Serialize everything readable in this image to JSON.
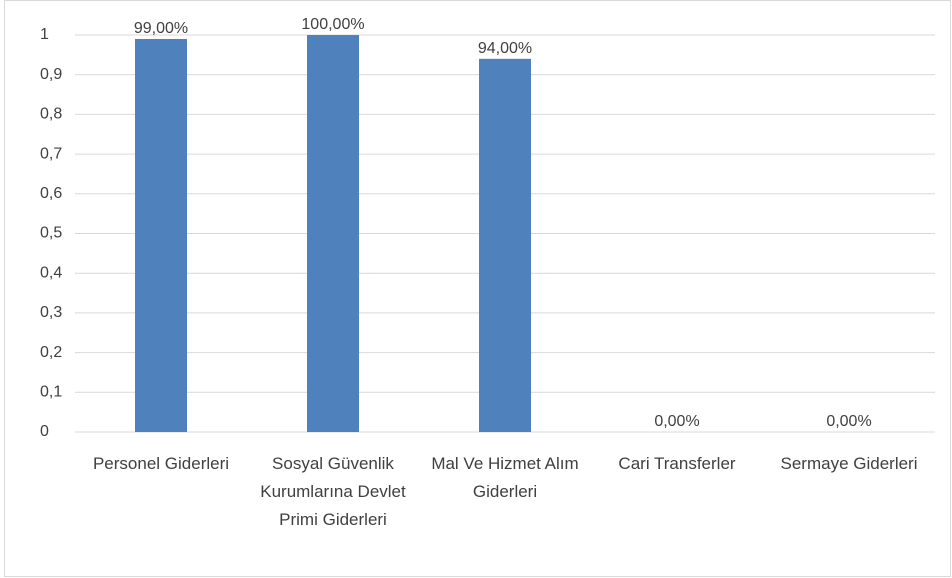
{
  "chart_data": {
    "type": "bar",
    "categories": [
      "Personel Giderleri",
      "Sosyal Güvenlik Kurumlarına Devlet Primi Giderleri",
      "Mal Ve Hizmet Alım Giderleri",
      "Cari Transferler",
      "Sermaye Giderleri"
    ],
    "values": [
      0.99,
      1,
      0.94,
      0,
      0
    ],
    "value_labels": [
      "99,00%",
      "100,00%",
      "94,00%",
      "0,00%",
      "0,00%"
    ],
    "color": "#4f81bd",
    "ylim": [
      0,
      1
    ],
    "yticks": [
      0,
      {
        "value": 0.1,
        "label": "0,1"
      },
      {
        "value": 0.2,
        "label": "0,2"
      },
      {
        "value": 0.3,
        "label": "0,3"
      },
      {
        "value": 0.4,
        "label": "0,4"
      },
      {
        "value": 0.5,
        "label": "0,5"
      },
      {
        "value": 0.6,
        "label": "0,6"
      },
      {
        "value": 0.7,
        "label": "0,7"
      },
      {
        "value": 0.8,
        "label": "0,8"
      },
      {
        "value": 0.9,
        "label": "0,9"
      },
      1
    ],
    "grid": true
  }
}
